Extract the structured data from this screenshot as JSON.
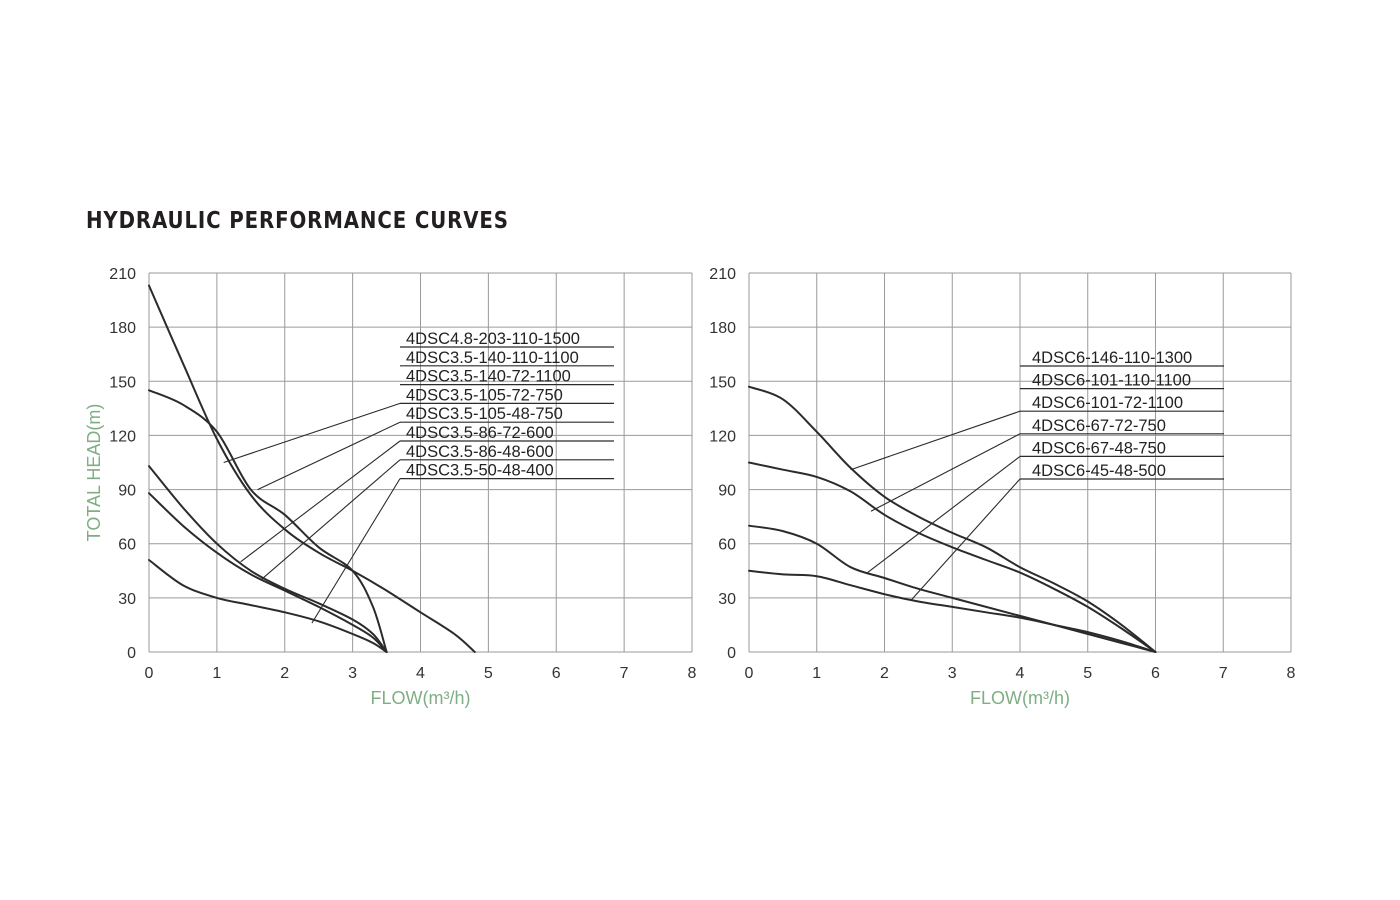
{
  "page": {
    "title": "HYDRAULIC PERFORMANCE CURVES"
  },
  "colors": {
    "title": "#231f20",
    "axis_title": "#7fae84",
    "curve": "#2b2b2b",
    "grid": "#9a9a9a"
  },
  "chart_data": [
    {
      "type": "line",
      "xlabel": "FLOW(m³/h)",
      "ylabel": "TOTAL HEAD(m)",
      "xlim": [
        0,
        8
      ],
      "ylim": [
        0,
        210
      ],
      "xticks": [
        "0",
        "1",
        "2",
        "3",
        "4",
        "5",
        "6",
        "7",
        "8"
      ],
      "yticks": [
        "0",
        "30",
        "60",
        "90",
        "120",
        "150",
        "180",
        "210"
      ],
      "grid": true,
      "legend_entries": [
        "4DSC4.8-203-110-1500",
        "4DSC3.5-140-110-1100",
        "4DSC3.5-140-72-1100",
        "4DSC3.5-105-72-750",
        "4DSC3.5-105-48-750",
        "4DSC3.5-86-72-600",
        "4DSC3.5-86-48-600",
        "4DSC3.5-50-48-400"
      ],
      "series": [
        {
          "x": [
            0,
            0.5,
            1.0,
            1.5,
            2.0,
            2.5,
            3.0,
            3.5,
            4.0,
            4.5,
            4.8
          ],
          "y": [
            203,
            160,
            118,
            87,
            68,
            55,
            45,
            34,
            22,
            10,
            0
          ]
        },
        {
          "x": [
            0,
            0.5,
            1.0,
            1.5,
            2.0,
            2.5,
            3.0,
            3.3,
            3.5
          ],
          "y": [
            145,
            137,
            122,
            90,
            76,
            58,
            45,
            25,
            0
          ]
        },
        {
          "x": [
            0,
            0.5,
            1.0,
            1.5,
            2.0,
            2.5,
            3.0,
            3.3,
            3.5
          ],
          "y": [
            103,
            80,
            60,
            45,
            35,
            27,
            18,
            10,
            0
          ]
        },
        {
          "x": [
            0,
            0.5,
            1.0,
            1.5,
            2.0,
            2.5,
            3.0,
            3.3,
            3.5
          ],
          "y": [
            88,
            70,
            55,
            43,
            34,
            25,
            15,
            8,
            0
          ]
        },
        {
          "x": [
            0,
            0.5,
            1.0,
            1.5,
            2.0,
            2.5,
            3.0,
            3.3,
            3.5
          ],
          "y": [
            51,
            37,
            30,
            26,
            22,
            17,
            10,
            5,
            0
          ]
        }
      ],
      "leaders": [
        {
          "x": 1.1,
          "y": 105
        },
        {
          "x": 1.6,
          "y": 90
        },
        {
          "x": 1.35,
          "y": 50
        },
        {
          "x": 1.65,
          "y": 40
        },
        {
          "x": 2.4,
          "y": 16
        }
      ]
    },
    {
      "type": "line",
      "xlabel": "FLOW(m³/h)",
      "ylabel": "",
      "xlim": [
        0,
        8
      ],
      "ylim": [
        0,
        210
      ],
      "xticks": [
        "0",
        "1",
        "2",
        "3",
        "4",
        "5",
        "6",
        "7",
        "8"
      ],
      "yticks": [
        "0",
        "30",
        "60",
        "90",
        "120",
        "150",
        "180",
        "210"
      ],
      "grid": true,
      "legend_entries": [
        "4DSC6-146-110-1300",
        "4DSC6-101-110-1100",
        "4DSC6-101-72-1100",
        "4DSC6-67-72-750",
        "4DSC6-67-48-750",
        "4DSC6-45-48-500"
      ],
      "series": [
        {
          "x": [
            0,
            0.5,
            1.0,
            1.5,
            2.0,
            2.5,
            3.0,
            3.5,
            4.0,
            4.5,
            5.0,
            5.5,
            6.0
          ],
          "y": [
            147,
            140,
            122,
            102,
            86,
            75,
            66,
            58,
            47,
            38,
            28,
            15,
            0
          ]
        },
        {
          "x": [
            0,
            0.5,
            1.0,
            1.5,
            2.0,
            2.5,
            3.0,
            3.5,
            4.0,
            4.5,
            5.0,
            5.5,
            6.0
          ],
          "y": [
            105,
            101,
            97,
            89,
            76,
            66,
            58,
            51,
            44,
            35,
            25,
            13,
            0
          ]
        },
        {
          "x": [
            0,
            0.5,
            1.0,
            1.5,
            2.0,
            2.5,
            3.0,
            3.5,
            4.0,
            4.5,
            5.0,
            5.5,
            6.0
          ],
          "y": [
            70,
            67,
            60,
            47,
            41,
            35,
            30,
            25,
            20,
            15,
            10,
            5,
            0
          ]
        },
        {
          "x": [
            0,
            0.5,
            1.0,
            1.5,
            2.0,
            2.5,
            3.0,
            3.5,
            4.0,
            4.5,
            5.0,
            5.5,
            6.0
          ],
          "y": [
            45,
            43,
            42,
            37,
            32,
            28,
            25,
            22,
            19,
            15,
            11,
            6,
            0
          ]
        }
      ],
      "leaders": [
        {
          "x": 1.5,
          "y": 101
        },
        {
          "x": 1.8,
          "y": 78
        },
        {
          "x": 1.75,
          "y": 44
        },
        {
          "x": 2.4,
          "y": 29
        }
      ]
    }
  ]
}
